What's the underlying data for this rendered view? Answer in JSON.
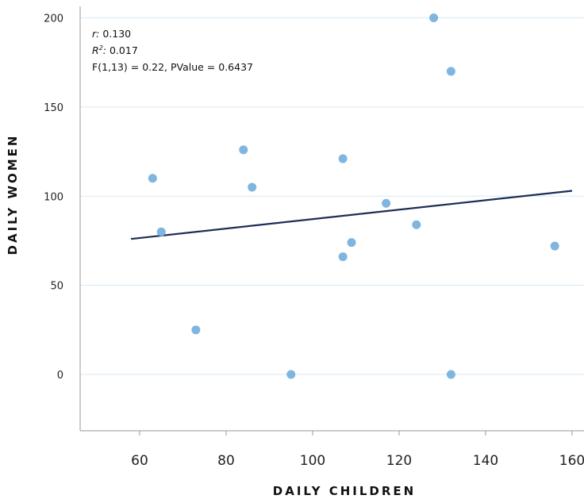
{
  "chart_data": {
    "type": "scatter",
    "xlabel": "DAILY CHILDREN",
    "ylabel": "DAILY WOMEN",
    "xlim": [
      47,
      162
    ],
    "ylim": [
      -31,
      205
    ],
    "x_ticks": [
      60,
      80,
      100,
      120,
      140,
      160
    ],
    "y_ticks": [
      0,
      50,
      100,
      150,
      200
    ],
    "grid": true,
    "points": [
      {
        "x": 63,
        "y": 110
      },
      {
        "x": 65,
        "y": 80
      },
      {
        "x": 73,
        "y": 25
      },
      {
        "x": 84,
        "y": 126
      },
      {
        "x": 86,
        "y": 105
      },
      {
        "x": 95,
        "y": 0
      },
      {
        "x": 107,
        "y": 121
      },
      {
        "x": 107,
        "y": 66
      },
      {
        "x": 109,
        "y": 74
      },
      {
        "x": 117,
        "y": 96
      },
      {
        "x": 124,
        "y": 84
      },
      {
        "x": 128,
        "y": 200
      },
      {
        "x": 132,
        "y": 170
      },
      {
        "x": 132,
        "y": 0
      },
      {
        "x": 156,
        "y": 72
      }
    ],
    "trendline": {
      "x": [
        58,
        160
      ],
      "y": [
        76,
        103
      ]
    },
    "stats": {
      "r_label": "r:",
      "r_value": "0.130",
      "r2_label": "R",
      "r2_sup": "2",
      "r2_suffix": ":",
      "r2_value": "0.017",
      "f_text": "F(1,13) = 0.22, PValue = 0.6437"
    }
  }
}
